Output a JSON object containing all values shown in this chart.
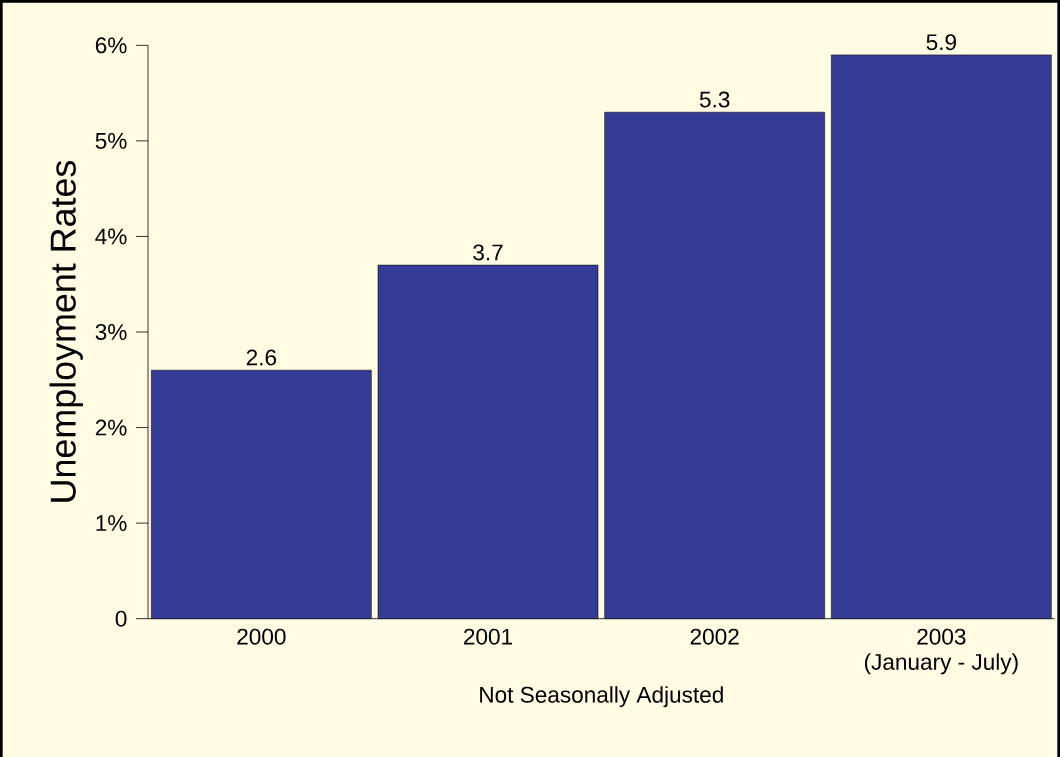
{
  "chart_data": {
    "type": "bar",
    "ylabel": "Unemployment Rates",
    "xlabel": "Not Seasonally Adjusted",
    "categories": [
      "2000",
      "2001",
      "2002",
      "2003\n(January - July)"
    ],
    "values": [
      2.6,
      3.7,
      5.3,
      5.9
    ],
    "color": "#353c96",
    "ylim": [
      0,
      6
    ],
    "yticks": [
      0,
      {
        "value": 1,
        "label": "1%"
      },
      {
        "value": 2,
        "label": "2%"
      },
      {
        "value": 3,
        "label": "3%"
      },
      {
        "value": 4,
        "label": "4%"
      },
      {
        "value": 5,
        "label": "5%"
      },
      {
        "value": 6,
        "label": "6%"
      }
    ],
    "data_labels": true,
    "grid": false
  }
}
